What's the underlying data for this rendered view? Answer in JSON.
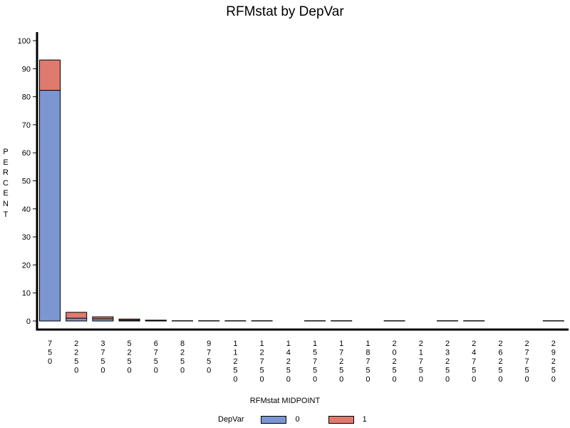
{
  "chart_data": {
    "type": "bar",
    "stacked": true,
    "title": "RFMstat by DepVar",
    "xlabel": "RFMstat MIDPOINT",
    "ylabel": "PERCENT",
    "ylim": [
      0,
      100
    ],
    "yticks": [
      0,
      10,
      20,
      30,
      40,
      50,
      60,
      70,
      80,
      90,
      100
    ],
    "categories": [
      "750",
      "2250",
      "3750",
      "5250",
      "6750",
      "8250",
      "9750",
      "11250",
      "12750",
      "14250",
      "15750",
      "17250",
      "18750",
      "20250",
      "21750",
      "23250",
      "24750",
      "26250",
      "27750",
      "29250"
    ],
    "legend_title": "DepVar",
    "legend_position": "bottom",
    "series": [
      {
        "name": "0",
        "color": "#7b96d0",
        "values": [
          82.3,
          1.0,
          0.8,
          0.3,
          0.15,
          0.1,
          0.1,
          0.1,
          0.1,
          0,
          0.1,
          0.1,
          0,
          0.1,
          0,
          0.1,
          0.1,
          0,
          0,
          0.1
        ]
      },
      {
        "name": "1",
        "color": "#df7b6e",
        "values": [
          10.8,
          2.1,
          0.7,
          0.4,
          0.15,
          0,
          0,
          0,
          0,
          0,
          0,
          0,
          0,
          0,
          0,
          0,
          0,
          0,
          0,
          0
        ]
      }
    ]
  }
}
